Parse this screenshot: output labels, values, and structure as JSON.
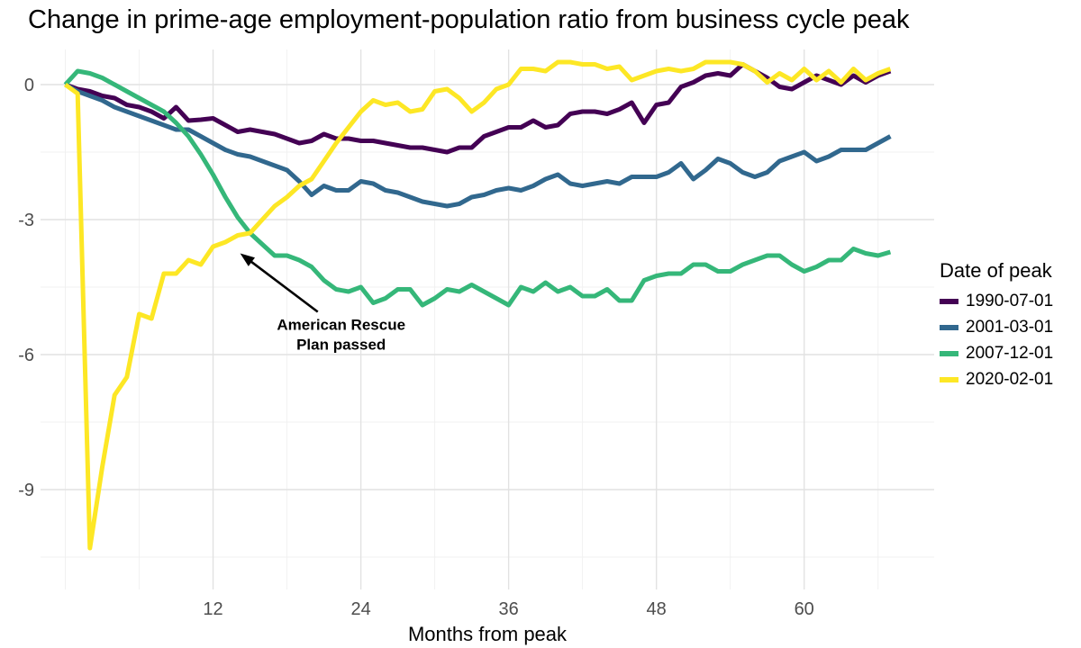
{
  "chart_data": {
    "type": "line",
    "title": "Change in prime-age employment-population ratio from business cycle peak",
    "xlabel": "Months from peak",
    "ylabel": "",
    "x_start": 0,
    "x_step": 1,
    "xlim": [
      0,
      67
    ],
    "ylim": [
      -11.2,
      0.8
    ],
    "grid": "on",
    "x_major_ticks": [
      12,
      24,
      36,
      48,
      60
    ],
    "x_minor_gridlines": [
      0,
      6,
      18,
      30,
      42,
      54,
      66
    ],
    "y_major_ticks": [
      0,
      -3,
      -6,
      -9
    ],
    "y_tick_labels": [
      "0",
      "-3",
      "-6",
      "-9"
    ],
    "y_minor_gridlines": [
      -1.5,
      -4.5,
      -7.5,
      -10.5
    ],
    "legend_position": "right",
    "legend_title": "Date of peak",
    "series": [
      {
        "name": "1990-07-01",
        "color": "#440154",
        "values": [
          0,
          -0.1,
          -0.15,
          -0.25,
          -0.3,
          -0.45,
          -0.5,
          -0.6,
          -0.75,
          -0.5,
          -0.8,
          -0.78,
          -0.75,
          -0.9,
          -1.05,
          -1.0,
          -1.05,
          -1.1,
          -1.2,
          -1.3,
          -1.25,
          -1.1,
          -1.2,
          -1.2,
          -1.25,
          -1.25,
          -1.3,
          -1.35,
          -1.4,
          -1.4,
          -1.45,
          -1.5,
          -1.4,
          -1.4,
          -1.15,
          -1.05,
          -0.95,
          -0.95,
          -0.8,
          -0.95,
          -0.9,
          -0.65,
          -0.6,
          -0.6,
          -0.65,
          -0.55,
          -0.4,
          -0.85,
          -0.45,
          -0.4,
          -0.05,
          0.05,
          0.2,
          0.25,
          0.2,
          0.45,
          0.3,
          0.15,
          -0.05,
          -0.1,
          0.05,
          0.2,
          0.1,
          0.0,
          0.2,
          0.05,
          0.2,
          0.3
        ]
      },
      {
        "name": "2001-03-01",
        "color": "#31688E",
        "values": [
          0,
          -0.15,
          -0.25,
          -0.35,
          -0.5,
          -0.6,
          -0.7,
          -0.8,
          -0.9,
          -1.0,
          -1.0,
          -1.15,
          -1.3,
          -1.45,
          -1.55,
          -1.6,
          -1.7,
          -1.8,
          -1.9,
          -2.15,
          -2.45,
          -2.25,
          -2.35,
          -2.35,
          -2.15,
          -2.2,
          -2.35,
          -2.4,
          -2.5,
          -2.6,
          -2.65,
          -2.7,
          -2.65,
          -2.5,
          -2.45,
          -2.35,
          -2.3,
          -2.35,
          -2.25,
          -2.1,
          -2.0,
          -2.2,
          -2.25,
          -2.2,
          -2.15,
          -2.2,
          -2.05,
          -2.05,
          -2.05,
          -1.95,
          -1.75,
          -2.1,
          -1.9,
          -1.65,
          -1.75,
          -1.95,
          -2.05,
          -1.95,
          -1.7,
          -1.6,
          -1.5,
          -1.7,
          -1.6,
          -1.45,
          -1.45,
          -1.45,
          -1.3,
          -1.15
        ]
      },
      {
        "name": "2007-12-01",
        "color": "#35B779",
        "values": [
          0,
          0.3,
          0.25,
          0.15,
          0.0,
          -0.15,
          -0.3,
          -0.45,
          -0.6,
          -0.85,
          -1.15,
          -1.55,
          -2.0,
          -2.5,
          -2.95,
          -3.3,
          -3.55,
          -3.8,
          -3.8,
          -3.9,
          -4.05,
          -4.35,
          -4.55,
          -4.6,
          -4.5,
          -4.85,
          -4.75,
          -4.55,
          -4.55,
          -4.9,
          -4.75,
          -4.55,
          -4.6,
          -4.45,
          -4.6,
          -4.75,
          -4.9,
          -4.5,
          -4.6,
          -4.4,
          -4.6,
          -4.5,
          -4.7,
          -4.7,
          -4.55,
          -4.8,
          -4.8,
          -4.35,
          -4.25,
          -4.2,
          -4.2,
          -4.0,
          -4.0,
          -4.15,
          -4.15,
          -4.0,
          -3.9,
          -3.8,
          -3.8,
          -4.0,
          -4.15,
          -4.05,
          -3.9,
          -3.9,
          -3.65,
          -3.75,
          -3.8,
          -3.72
        ]
      },
      {
        "name": "2020-02-01",
        "color": "#FDE725",
        "values": [
          0,
          -0.2,
          -10.3,
          -8.5,
          -6.9,
          -6.5,
          -5.1,
          -5.2,
          -4.2,
          -4.2,
          -3.9,
          -4.0,
          -3.6,
          -3.5,
          -3.35,
          -3.3,
          -3.0,
          -2.7,
          -2.5,
          -2.25,
          -2.1,
          -1.7,
          -1.3,
          -0.95,
          -0.6,
          -0.35,
          -0.45,
          -0.4,
          -0.6,
          -0.55,
          -0.15,
          -0.1,
          -0.3,
          -0.6,
          -0.4,
          -0.1,
          0.0,
          0.35,
          0.35,
          0.3,
          0.5,
          0.5,
          0.45,
          0.45,
          0.35,
          0.4,
          0.1,
          0.2,
          0.3,
          0.35,
          0.3,
          0.35,
          0.5,
          0.5,
          0.5,
          0.45,
          0.3,
          0.05,
          0.25,
          0.1,
          0.35,
          0.1,
          0.3,
          0.05,
          0.35,
          0.1,
          0.25,
          0.35
        ]
      }
    ],
    "annotation": {
      "lines": [
        "American Rescue",
        "Plan passed"
      ],
      "text_pos": {
        "month": 22.4,
        "value": -5.45
      },
      "line_spacing_px": 22,
      "arrow_from": {
        "month": 20.5,
        "value": -5.05
      },
      "arrow_to": {
        "month": 14.2,
        "value": -3.75
      }
    }
  },
  "colors": {
    "gridline_major": "#E2E2E2",
    "gridline_minor": "#F0F0F0",
    "tick_label": "#4D4D4D",
    "annotation": "#000000"
  }
}
